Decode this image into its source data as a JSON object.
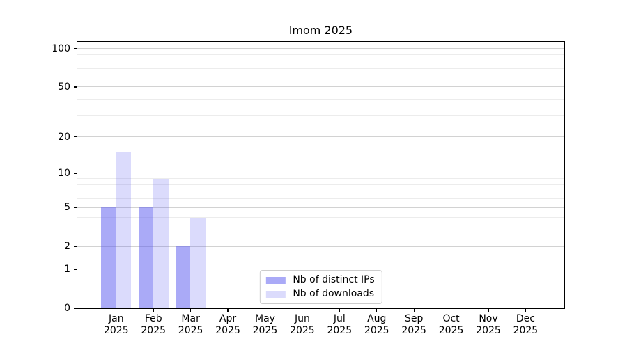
{
  "chart_data": {
    "type": "bar",
    "title": "lmom 2025",
    "categories": [
      "Jan 2025",
      "Feb 2025",
      "Mar 2025",
      "Apr 2025",
      "May 2025",
      "Jun 2025",
      "Jul 2025",
      "Aug 2025",
      "Sep 2025",
      "Oct 2025",
      "Nov 2025",
      "Dec 2025"
    ],
    "series": [
      {
        "name": "Nb of distinct IPs",
        "key": "distinct-ips",
        "color": "rgba(85,85,240,0.5)",
        "values": [
          5,
          5,
          2,
          0,
          0,
          0,
          0,
          0,
          0,
          0,
          0,
          0
        ]
      },
      {
        "name": "Nb of downloads",
        "key": "downloads",
        "color": "rgba(85,85,240,0.21)",
        "values": [
          15,
          9,
          4,
          0,
          0,
          0,
          0,
          0,
          0,
          0,
          0,
          0
        ]
      }
    ],
    "xlabel": "",
    "ylabel": "",
    "y_axis": {
      "scale": "log1p",
      "tick_labels": [
        "0",
        "1",
        "2",
        "5",
        "10",
        "20",
        "50",
        "100"
      ],
      "major_ticks": [
        0,
        1,
        2,
        5,
        10,
        20,
        50,
        100
      ],
      "minor_gridlines": [
        3,
        4,
        6,
        7,
        8,
        9,
        30,
        40,
        60,
        70,
        80,
        90
      ],
      "ylim": [
        0,
        112
      ]
    },
    "grid": true,
    "legend_position": "lower center",
    "colors": {
      "bar_distinct_ips": "#aaaaf7",
      "bar_downloads": "#dcdcfa",
      "major_grid": "#d2d2d2",
      "minor_grid": "#ececec",
      "axis": "#000000"
    }
  }
}
